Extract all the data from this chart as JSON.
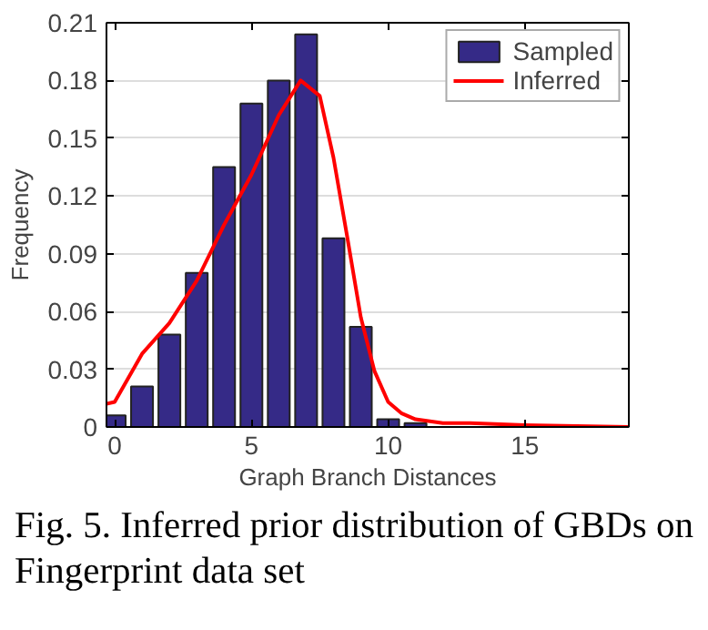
{
  "chart_data": {
    "type": "bar",
    "xlabel": "Graph Branch Distances",
    "ylabel": "Frequency",
    "x": [
      0,
      1,
      2,
      3,
      4,
      5,
      6,
      7,
      8,
      9,
      10,
      11
    ],
    "series": [
      {
        "name": "Sampled",
        "color": "#352a87",
        "values": [
          0.006,
          0.021,
          0.048,
          0.08,
          0.135,
          0.168,
          0.18,
          0.204,
          0.098,
          0.052,
          0.004,
          0.002
        ]
      },
      {
        "name": "Inferred",
        "type": "line",
        "color": "#ff0000",
        "x": [
          -0.3,
          0,
          1,
          2,
          3,
          4,
          5,
          6,
          6.8,
          7.5,
          8,
          8.5,
          9,
          9.5,
          10,
          10.5,
          11,
          12,
          13,
          15,
          18.8
        ],
        "values": [
          0.012,
          0.013,
          0.038,
          0.054,
          0.076,
          0.105,
          0.131,
          0.162,
          0.18,
          0.172,
          0.14,
          0.099,
          0.057,
          0.029,
          0.013,
          0.007,
          0.004,
          0.002,
          0.002,
          0.001,
          0
        ]
      }
    ],
    "xlim": [
      -0.3,
      18.8
    ],
    "ylim": [
      0,
      0.21
    ],
    "xticks": [
      0,
      5,
      10,
      15
    ],
    "yticks": [
      0,
      0.03,
      0.06,
      0.09,
      0.12,
      0.15,
      0.18,
      0.21
    ],
    "grid": "y",
    "legend": "top right",
    "line_style": "solid",
    "marker": "none",
    "annotations": [
      "Fig. 5.   Inferred prior distribution of GBDs on Fingerprint data set"
    ]
  }
}
